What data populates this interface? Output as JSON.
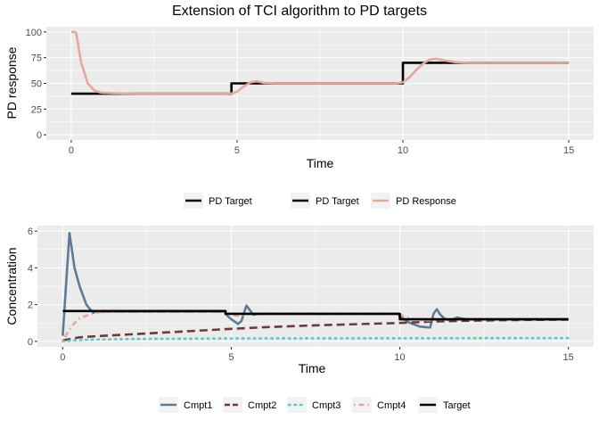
{
  "chart_data": [
    {
      "type": "line",
      "title": "Extension of TCI algorithm to PD targets",
      "xlabel": "Time",
      "ylabel": "PD response",
      "xlim": [
        -0.75,
        15.75
      ],
      "ylim": [
        -5,
        105
      ],
      "x_ticks": [
        0,
        5,
        10,
        15
      ],
      "x_tick_labels": [
        "0",
        "5",
        "10",
        "15"
      ],
      "y_ticks": [
        0,
        25,
        50,
        75,
        100
      ],
      "y_tick_labels": [
        "0",
        "25",
        "50",
        "75",
        "100"
      ],
      "grid": true,
      "legend_position": "bottom",
      "series": [
        {
          "name": "PD Target",
          "color": "#000000",
          "dash": "solid",
          "step": true,
          "x": [
            0,
            4.83,
            4.83,
            10,
            10,
            15
          ],
          "y": [
            40,
            40,
            50,
            50,
            70,
            70
          ]
        },
        {
          "name": "PD Response",
          "color": "#E4A79A",
          "dash": "solid",
          "step": false,
          "x": [
            0,
            0.1,
            0.15,
            0.3,
            0.5,
            0.7,
            0.9,
            1.2,
            2,
            3,
            4,
            4.7,
            4.85,
            5,
            5.2,
            5.4,
            5.6,
            5.8,
            6.2,
            7,
            8,
            9,
            9.8,
            10,
            10.2,
            10.4,
            10.6,
            10.8,
            11,
            11.3,
            11.6,
            12,
            13,
            14,
            15
          ],
          "y": [
            100,
            100,
            99,
            70,
            50,
            43,
            41,
            40.5,
            40,
            40,
            40,
            40,
            40.3,
            42,
            47,
            51,
            52,
            50.5,
            50,
            50,
            50,
            50,
            50,
            51,
            56,
            63,
            69,
            73,
            74,
            72,
            70.5,
            70,
            70,
            70,
            70
          ]
        }
      ],
      "legend_entries": [
        {
          "label": "PD Target",
          "color": "#000000",
          "key_line": true
        },
        {
          "label": "PD Target",
          "color": "#000000",
          "key_line": true
        },
        {
          "label": "PD Response",
          "color": "#E4A79A",
          "key_line": true
        }
      ]
    },
    {
      "type": "line",
      "title": "",
      "xlabel": "Time",
      "ylabel": "Concentration",
      "xlim": [
        -0.75,
        15.75
      ],
      "ylim": [
        -0.3,
        6.3
      ],
      "x_ticks": [
        0,
        5,
        10,
        15
      ],
      "x_tick_labels": [
        "0",
        "5",
        "10",
        "15"
      ],
      "y_ticks": [
        0,
        2,
        4,
        6
      ],
      "y_tick_labels": [
        "0",
        "2",
        "4",
        "6"
      ],
      "grid": true,
      "legend_position": "bottom",
      "series": [
        {
          "name": "Cmpt1",
          "color": "#5F7A96",
          "dash": "solid",
          "step": false,
          "x": [
            0,
            0.2,
            0.35,
            0.5,
            0.7,
            0.9,
            1.0,
            1.2,
            2,
            3,
            4,
            4.8,
            4.85,
            5,
            5.2,
            5.3,
            5.45,
            5.55,
            5.65,
            5.8,
            6,
            7,
            8,
            9,
            9.95,
            10,
            10.3,
            10.6,
            10.9,
            11.0,
            11.1,
            11.2,
            11.35,
            11.5,
            11.7,
            11.8,
            12,
            13,
            14,
            15
          ],
          "y": [
            0.3,
            5.9,
            4.0,
            3.0,
            2.0,
            1.55,
            1.65,
            1.62,
            1.62,
            1.62,
            1.62,
            1.62,
            1.45,
            1.2,
            0.95,
            1.1,
            1.95,
            1.7,
            1.45,
            1.5,
            1.5,
            1.5,
            1.5,
            1.5,
            1.5,
            1.35,
            1.0,
            0.8,
            0.75,
            1.5,
            1.75,
            1.45,
            1.2,
            1.15,
            1.3,
            1.25,
            1.2,
            1.2,
            1.2,
            1.2
          ]
        },
        {
          "name": "Cmpt2",
          "color": "#6B3A3A",
          "dash": "longdash",
          "step": false,
          "x": [
            0,
            0.5,
            1,
            2,
            3,
            4,
            5,
            6,
            7,
            8,
            9,
            10,
            11,
            12,
            13,
            14,
            15
          ],
          "y": [
            0.05,
            0.22,
            0.28,
            0.38,
            0.48,
            0.58,
            0.68,
            0.77,
            0.84,
            0.9,
            0.95,
            1.0,
            1.08,
            1.12,
            1.15,
            1.17,
            1.18
          ]
        },
        {
          "name": "Cmpt3",
          "color": "#5BC8CC",
          "dash": "dotted",
          "step": false,
          "x": [
            0,
            0.3,
            1,
            2,
            5,
            10,
            15
          ],
          "y": [
            0.01,
            0.05,
            0.1,
            0.13,
            0.16,
            0.17,
            0.18
          ]
        },
        {
          "name": "Cmpt4",
          "color": "#E4A79A",
          "dash": "dotdash",
          "step": false,
          "x": [
            0,
            0.15,
            0.3,
            0.5,
            0.7,
            0.9,
            1.1,
            1.3,
            2,
            3,
            4,
            4.8,
            4.9,
            5.0,
            5.2,
            5.4,
            5.6,
            6,
            7,
            8,
            9,
            9.95,
            10,
            10.2,
            10.4,
            10.6,
            10.8,
            11,
            11.3,
            11.6,
            12,
            13,
            14,
            15
          ],
          "y": [
            0,
            0.5,
            0.9,
            1.25,
            1.4,
            1.52,
            1.58,
            1.6,
            1.62,
            1.62,
            1.62,
            1.62,
            1.55,
            1.43,
            1.4,
            1.45,
            1.5,
            1.5,
            1.5,
            1.5,
            1.5,
            1.5,
            1.45,
            1.32,
            1.22,
            1.16,
            1.14,
            1.16,
            1.2,
            1.2,
            1.2,
            1.2,
            1.2,
            1.2
          ]
        },
        {
          "name": "Target",
          "color": "#000000",
          "dash": "solid",
          "step": true,
          "x": [
            0,
            4.83,
            4.83,
            10,
            10,
            15
          ],
          "y": [
            1.65,
            1.65,
            1.5,
            1.5,
            1.2,
            1.2
          ]
        }
      ],
      "legend_entries": [
        {
          "label": "Cmpt1",
          "color": "#5F7A96",
          "dash": "solid"
        },
        {
          "label": "Cmpt2",
          "color": "#6B3A3A",
          "dash": "longdash"
        },
        {
          "label": "Cmpt3",
          "color": "#5BC8CC",
          "dash": "dotted"
        },
        {
          "label": "Cmpt4",
          "color": "#E4A79A",
          "dash": "dotdash"
        },
        {
          "label": "Target",
          "color": "#000000",
          "dash": "solid"
        }
      ]
    }
  ]
}
